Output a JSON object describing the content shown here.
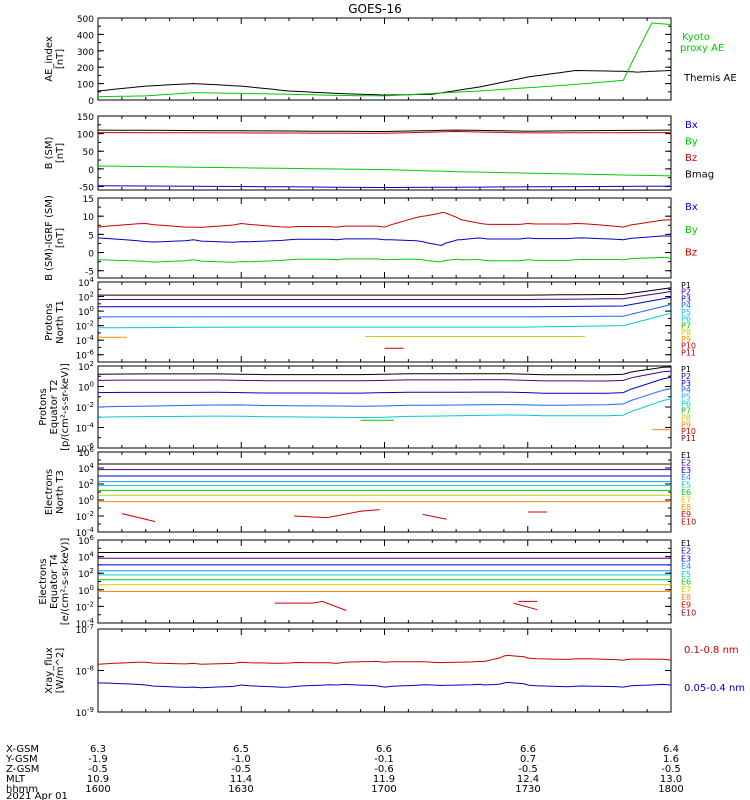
{
  "title": "GOES-16",
  "x_ticks": [
    "1600",
    "1630",
    "1700",
    "1730",
    "1800"
  ],
  "footer": {
    "row_labels": [
      "X-GSM",
      "Y-GSM",
      "Z-GSM",
      "MLT",
      "hhmm",
      "2021 Apr 01"
    ],
    "rows": [
      [
        "6.3",
        "6.5",
        "6.6",
        "6.6",
        "6.4"
      ],
      [
        "-1.9",
        "-1.0",
        "-0.1",
        "0.7",
        "1.6"
      ],
      [
        "-0.5",
        "-0.5",
        "-0.6",
        "-0.5",
        "-0.5"
      ],
      [
        "10.9",
        "11.4",
        "11.9",
        "12.4",
        "13.0"
      ],
      [
        "1600",
        "1630",
        "1700",
        "1730",
        "1800"
      ]
    ]
  },
  "panels": [
    {
      "id": "ae",
      "ylabel": [
        "AE_index",
        "[nT]"
      ],
      "scale": "linear",
      "ylim": [
        0,
        500
      ],
      "yticks": [
        "0",
        "100",
        "200",
        "300",
        "400",
        "500"
      ],
      "legend": [
        {
          "text": "Kyoto",
          "color": "#00cc00"
        },
        {
          "text": "proxy AE",
          "color": "#00cc00"
        },
        {
          "text": "Themis AE",
          "color": "#000000"
        }
      ]
    },
    {
      "id": "bsm",
      "ylabel": [
        "B (SM)",
        "[nT]"
      ],
      "scale": "linear",
      "ylim": [
        -60,
        150
      ],
      "yticks": [
        "-50",
        "0",
        "50",
        "100",
        "150"
      ],
      "legend": [
        {
          "text": "Bx",
          "color": "#0000cc"
        },
        {
          "text": "By",
          "color": "#00cc00"
        },
        {
          "text": "Bz",
          "color": "#cc0000"
        },
        {
          "text": "Bmag",
          "color": "#000000"
        }
      ]
    },
    {
      "id": "bigrf",
      "ylabel": [
        "B (SM)-IGRF (SM)",
        "[nT]"
      ],
      "scale": "linear",
      "ylim": [
        -7,
        15
      ],
      "yticks": [
        "-5",
        "0",
        "5",
        "10",
        "15"
      ],
      "legend": [
        {
          "text": "Bx",
          "color": "#0000cc"
        },
        {
          "text": "By",
          "color": "#00cc00"
        },
        {
          "text": "Bz",
          "color": "#cc0000"
        }
      ]
    },
    {
      "id": "pn",
      "ylabel": [
        "Protons",
        "North T1"
      ],
      "scale": "log",
      "ylim": [
        -7,
        4
      ],
      "yticks": [
        "10^-6",
        "10^-4",
        "10^-2",
        "10^0",
        "10^2",
        "10^4"
      ],
      "legend": [
        {
          "text": "P1",
          "color": "#000000"
        },
        {
          "text": "P2",
          "color": "#4b0082"
        },
        {
          "text": "P3",
          "color": "#0000cc"
        },
        {
          "text": "P4",
          "color": "#1e64ff"
        },
        {
          "text": "P5",
          "color": "#1eb4ff"
        },
        {
          "text": "P6",
          "color": "#00cccc"
        },
        {
          "text": "P7",
          "color": "#00cc00"
        },
        {
          "text": "P8",
          "color": "#cccc00"
        },
        {
          "text": "P9",
          "color": "#ff8c00"
        },
        {
          "text": "P10",
          "color": "#cc0000"
        },
        {
          "text": "P11",
          "color": "#990000"
        }
      ]
    },
    {
      "id": "pe",
      "ylabel": [
        "Protons",
        "Equator T2",
        "[p/(cm²-s-sr-keV)]"
      ],
      "scale": "log",
      "ylim": [
        -6,
        2
      ],
      "yticks": [
        "10^-6",
        "10^-4",
        "10^-2",
        "10^0",
        "10^2"
      ],
      "legend": [
        {
          "text": "P1",
          "color": "#000000"
        },
        {
          "text": "P2",
          "color": "#4b0082"
        },
        {
          "text": "P3",
          "color": "#0000cc"
        },
        {
          "text": "P4",
          "color": "#1e64ff"
        },
        {
          "text": "P5",
          "color": "#1eb4ff"
        },
        {
          "text": "P6",
          "color": "#00cccc"
        },
        {
          "text": "P7",
          "color": "#00cc00"
        },
        {
          "text": "P8",
          "color": "#cccc00"
        },
        {
          "text": "P9",
          "color": "#ff8c00"
        },
        {
          "text": "P10",
          "color": "#cc0000"
        },
        {
          "text": "P11",
          "color": "#990000"
        }
      ]
    },
    {
      "id": "en",
      "ylabel": [
        "Electrons",
        "North T3"
      ],
      "scale": "log",
      "ylim": [
        -4,
        6
      ],
      "yticks": [
        "10^-4",
        "10^-2",
        "10^0",
        "10^2",
        "10^4",
        "10^6"
      ],
      "legend": [
        {
          "text": "E1",
          "color": "#000000"
        },
        {
          "text": "E2",
          "color": "#4b0082"
        },
        {
          "text": "E3",
          "color": "#0000cc"
        },
        {
          "text": "E4",
          "color": "#1e90ff"
        },
        {
          "text": "E5",
          "color": "#00cccc"
        },
        {
          "text": "E6",
          "color": "#00cc00"
        },
        {
          "text": "E7",
          "color": "#cccc00"
        },
        {
          "text": "E8",
          "color": "#ff8c00"
        },
        {
          "text": "E9",
          "color": "#cc0000"
        },
        {
          "text": "E10",
          "color": "#990000"
        }
      ]
    },
    {
      "id": "ee",
      "ylabel": [
        "Electrons",
        "Equator T4",
        "[e/(cm²-s-sr-keV)]"
      ],
      "scale": "log",
      "ylim": [
        -4,
        6
      ],
      "yticks": [
        "10^-4",
        "10^-2",
        "10^0",
        "10^2",
        "10^4",
        "10^6"
      ],
      "legend": [
        {
          "text": "E1",
          "color": "#000000"
        },
        {
          "text": "E2",
          "color": "#4b0082"
        },
        {
          "text": "E3",
          "color": "#0000cc"
        },
        {
          "text": "E4",
          "color": "#1e90ff"
        },
        {
          "text": "E5",
          "color": "#00cccc"
        },
        {
          "text": "E6",
          "color": "#00cc00"
        },
        {
          "text": "E7",
          "color": "#cccc00"
        },
        {
          "text": "E8",
          "color": "#ff8c00"
        },
        {
          "text": "E9",
          "color": "#cc0000"
        },
        {
          "text": "E10",
          "color": "#990000"
        }
      ]
    },
    {
      "id": "xray",
      "ylabel": [
        "Xray_flux",
        "[W/m^2]"
      ],
      "scale": "log",
      "ylim": [
        -9,
        -7
      ],
      "yticks": [
        "10^-9",
        "10^-8",
        "10^-7"
      ],
      "legend": [
        {
          "text": "0.1-0.8 nm",
          "color": "#cc0000"
        },
        {
          "text": "0.05-0.4 nm",
          "color": "#0000cc"
        }
      ]
    }
  ],
  "chart_data": [
    {
      "type": "line",
      "title": "AE_index",
      "x": [
        1600,
        1610,
        1620,
        1630,
        1640,
        1650,
        1700,
        1710,
        1720,
        1730,
        1740,
        1750,
        1753,
        1756,
        1800
      ],
      "series": [
        {
          "name": "Themis AE",
          "color": "#000000",
          "values": [
            55,
            85,
            100,
            85,
            55,
            40,
            30,
            35,
            80,
            140,
            180,
            175,
            170,
            175,
            180
          ]
        },
        {
          "name": "Kyoto proxy AE",
          "color": "#00cc00",
          "values": [
            20,
            25,
            45,
            40,
            35,
            28,
            25,
            40,
            55,
            75,
            95,
            120,
            300,
            470,
            460
          ]
        }
      ]
    },
    {
      "type": "line",
      "title": "B (SM)",
      "x": [
        1600,
        1630,
        1700,
        1715,
        1730,
        1800
      ],
      "series": [
        {
          "name": "Bmag",
          "color": "#000000",
          "values": [
            110,
            108,
            106,
            110,
            107,
            110
          ]
        },
        {
          "name": "Bz",
          "color": "#cc0000",
          "values": [
            103,
            102,
            101,
            106,
            102,
            103
          ]
        },
        {
          "name": "By",
          "color": "#00cc00",
          "values": [
            8,
            3,
            -2,
            -8,
            -12,
            -20
          ]
        },
        {
          "name": "Bx",
          "color": "#0000cc",
          "values": [
            -48,
            -50,
            -53,
            -52,
            -51,
            -49
          ]
        }
      ]
    },
    {
      "type": "line",
      "title": "B (SM)-IGRF (SM)",
      "x": [
        1600,
        1610,
        1620,
        1630,
        1640,
        1650,
        1700,
        1708,
        1712,
        1716,
        1720,
        1730,
        1740,
        1750,
        1800
      ],
      "series": [
        {
          "name": "Bz",
          "color": "#cc0000",
          "values": [
            7,
            8,
            7,
            8,
            7,
            7,
            7,
            10,
            11,
            9,
            8,
            8,
            8,
            7,
            9
          ]
        },
        {
          "name": "Bx",
          "color": "#0000cc",
          "values": [
            4,
            3,
            3.5,
            3,
            3.5,
            3.5,
            3.5,
            3,
            2,
            3.5,
            4,
            4,
            4,
            3.5,
            4.5
          ]
        },
        {
          "name": "By",
          "color": "#00cc00",
          "values": [
            -2,
            -2.5,
            -2,
            -2.5,
            -2,
            -2,
            -2,
            -2,
            -2.5,
            -2,
            -2,
            -2,
            -2,
            -2,
            -1.5
          ]
        }
      ]
    },
    {
      "type": "line",
      "title": "Protons North T1",
      "x": [
        1600,
        1630,
        1700,
        1730,
        1750,
        1800
      ],
      "series": [
        {
          "name": "P1",
          "color": "#000000",
          "values": [
            2.2,
            2.2,
            2.2,
            2.2,
            2.3,
            3.2
          ]
        },
        {
          "name": "P2",
          "color": "#4b0082",
          "values": [
            1.6,
            1.6,
            1.6,
            1.6,
            1.7,
            2.7
          ]
        },
        {
          "name": "P3",
          "color": "#0000cc",
          "values": [
            0.6,
            0.6,
            0.6,
            0.6,
            0.7,
            1.9
          ]
        },
        {
          "name": "P4",
          "color": "#1e64ff",
          "values": [
            -0.8,
            -0.8,
            -0.8,
            -0.8,
            -0.7,
            0.9
          ]
        },
        {
          "name": "P6",
          "color": "#00cccc",
          "values": [
            -2.3,
            -2.2,
            -2.2,
            -2.2,
            -2.0,
            -0.3
          ]
        }
      ]
    },
    {
      "type": "line",
      "title": "Protons Equator T2",
      "x": [
        1600,
        1630,
        1700,
        1730,
        1750,
        1800
      ],
      "series": [
        {
          "name": "P1",
          "color": "#000000",
          "values": [
            1.2,
            1.2,
            1.2,
            1.2,
            1.2,
            1.9
          ]
        },
        {
          "name": "P2",
          "color": "#4b0082",
          "values": [
            0.6,
            0.6,
            0.6,
            0.6,
            0.6,
            1.5
          ]
        },
        {
          "name": "P3",
          "color": "#0000cc",
          "values": [
            -0.6,
            -0.6,
            -0.6,
            -0.6,
            -0.6,
            0.9
          ]
        },
        {
          "name": "P4",
          "color": "#1e64ff",
          "values": [
            -2.0,
            -1.8,
            -1.9,
            -1.8,
            -1.7,
            -0.2
          ]
        },
        {
          "name": "P6",
          "color": "#00cccc",
          "values": [
            -3.0,
            -2.9,
            -3.0,
            -2.8,
            -2.8,
            -1.2
          ]
        }
      ]
    },
    {
      "type": "line",
      "title": "Electrons North T3",
      "x": [
        1600,
        1800
      ],
      "series": [
        {
          "name": "E1",
          "color": "#000000",
          "values": [
            4.5,
            4.5
          ]
        },
        {
          "name": "E2",
          "color": "#4b0082",
          "values": [
            3.8,
            3.8
          ]
        },
        {
          "name": "E3",
          "color": "#0000cc",
          "values": [
            3.0,
            3.0
          ]
        },
        {
          "name": "E4",
          "color": "#1e90ff",
          "values": [
            2.3,
            2.3
          ]
        },
        {
          "name": "E5",
          "color": "#00cccc",
          "values": [
            1.8,
            1.8
          ]
        },
        {
          "name": "E6",
          "color": "#00cc00",
          "values": [
            1.2,
            1.2
          ]
        },
        {
          "name": "E7",
          "color": "#cccc00",
          "values": [
            0.6,
            0.6
          ]
        },
        {
          "name": "E8",
          "color": "#ff8c00",
          "values": [
            -0.2,
            -0.2
          ]
        }
      ]
    },
    {
      "type": "line",
      "title": "Electrons Equator T4",
      "x": [
        1600,
        1800
      ],
      "series": [
        {
          "name": "E1",
          "color": "#000000",
          "values": [
            4.5,
            4.5
          ]
        },
        {
          "name": "E2",
          "color": "#4b0082",
          "values": [
            3.8,
            3.8
          ]
        },
        {
          "name": "E3",
          "color": "#0000cc",
          "values": [
            3.0,
            3.0
          ]
        },
        {
          "name": "E4",
          "color": "#1e90ff",
          "values": [
            2.3,
            2.3
          ]
        },
        {
          "name": "E5",
          "color": "#00cccc",
          "values": [
            1.8,
            1.8
          ]
        },
        {
          "name": "E6",
          "color": "#00cc00",
          "values": [
            1.2,
            1.2
          ]
        },
        {
          "name": "E7",
          "color": "#cccc00",
          "values": [
            0.6,
            0.6
          ]
        },
        {
          "name": "E8",
          "color": "#ff8c00",
          "values": [
            -0.2,
            -0.2
          ]
        }
      ]
    },
    {
      "type": "line",
      "title": "Xray_flux",
      "x": [
        1600,
        1610,
        1620,
        1630,
        1640,
        1650,
        1700,
        1710,
        1720,
        1725,
        1730,
        1740,
        1750,
        1800
      ],
      "series": [
        {
          "name": "0.1-0.8 nm",
          "color": "#cc0000",
          "values": [
            -7.85,
            -7.8,
            -7.83,
            -7.8,
            -7.82,
            -7.83,
            -7.8,
            -7.8,
            -7.78,
            -7.65,
            -7.7,
            -7.72,
            -7.75,
            -7.75
          ]
        },
        {
          "name": "0.05-0.4 nm",
          "color": "#0000cc",
          "values": [
            -8.3,
            -8.35,
            -8.4,
            -8.35,
            -8.4,
            -8.35,
            -8.4,
            -8.35,
            -8.33,
            -8.3,
            -8.35,
            -8.38,
            -8.4,
            -8.35
          ]
        }
      ]
    }
  ]
}
